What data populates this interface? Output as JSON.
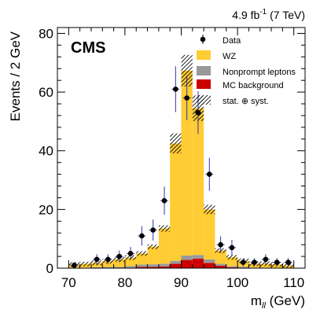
{
  "chart_data": {
    "type": "bar",
    "stacked": true,
    "title": "",
    "lumi_label": "4.9 fb",
    "lumi_sup": "-1",
    "lumi_energy": " (7 TeV)",
    "experiment_label": "CMS",
    "xlabel_main": "m",
    "xlabel_sub": "ll",
    "xlabel_unit": " (GeV)",
    "ylabel": "Events  /  2 GeV",
    "xlim": [
      68,
      112
    ],
    "ylim": [
      0,
      82
    ],
    "xticks": [
      70,
      80,
      90,
      100,
      110
    ],
    "yticks": [
      0,
      20,
      40,
      60,
      80
    ],
    "bin_edges": [
      70,
      72,
      74,
      76,
      78,
      80,
      82,
      84,
      86,
      88,
      90,
      92,
      94,
      96,
      98,
      100,
      102,
      104,
      106,
      108,
      110
    ],
    "series": [
      {
        "name": "MC background",
        "color": "#cc0000",
        "values": [
          0,
          0,
          0,
          0,
          0,
          0.2,
          0.4,
          0.4,
          0.6,
          1.5,
          2.8,
          3.2,
          1.8,
          0.8,
          0.3,
          0.2,
          0,
          0,
          0,
          0
        ]
      },
      {
        "name": "Nonprompt leptons",
        "color": "#999999",
        "values": [
          0.2,
          0.2,
          0.3,
          0.4,
          0.4,
          0.5,
          0.8,
          0.9,
          0.9,
          1.0,
          1.5,
          1.3,
          1.2,
          0.7,
          0.4,
          0.3,
          0.2,
          0.2,
          0.1,
          0.1
        ]
      },
      {
        "name": "WZ",
        "color": "#ffcc33",
        "values": [
          1.0,
          1.2,
          1.5,
          2.0,
          2.6,
          2.9,
          3.8,
          6.0,
          12.0,
          40.0,
          63.0,
          50.0,
          17.0,
          4.5,
          3.0,
          2.0,
          1.3,
          1.3,
          1.2,
          0.8
        ]
      }
    ],
    "syst_band_label": "stat. ⊕ syst.",
    "data": {
      "name": "Data",
      "x": [
        71,
        75,
        77,
        79,
        81,
        83,
        85,
        87,
        89,
        91,
        93,
        95,
        97,
        99,
        101,
        103,
        105,
        107,
        109
      ],
      "y": [
        1,
        3,
        3,
        4,
        5,
        11,
        13,
        23,
        61,
        58,
        53,
        32,
        8,
        7,
        2,
        2,
        3,
        2,
        2
      ]
    },
    "legend_position": "top-right",
    "grid": false
  }
}
